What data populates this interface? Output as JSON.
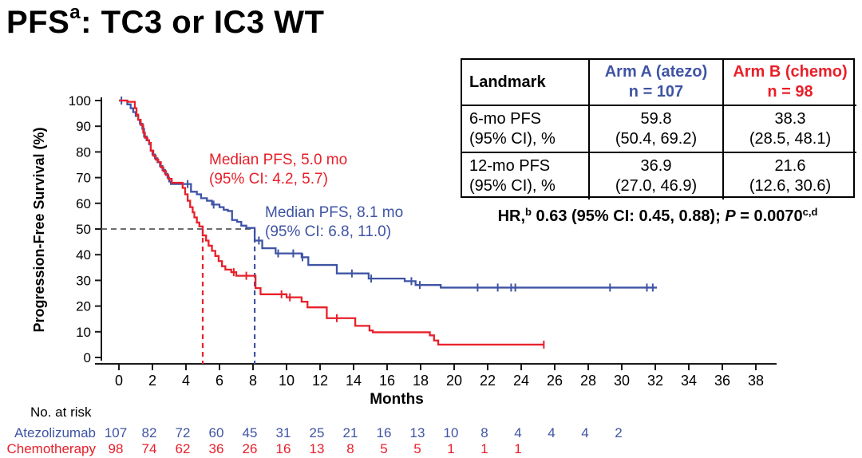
{
  "title": {
    "main": "PFS",
    "sup": "a",
    "rest": ": TC3 or IC3 WT"
  },
  "landmark_table": {
    "header": {
      "col1": "Landmark",
      "arm_a_line1": "Arm A (atezo)",
      "arm_a_line2": "n = 107",
      "arm_b_line1": "Arm B (chemo)",
      "arm_b_line2": "n = 98"
    },
    "rows": [
      {
        "label_line1": "6-mo PFS",
        "label_line2": "(95% CI), %",
        "arm_a_line1": "59.8",
        "arm_a_line2": "(50.4, 69.2)",
        "arm_b_line1": "38.3",
        "arm_b_line2": "(28.5, 48.1)"
      },
      {
        "label_line1": "12-mo PFS",
        "label_line2": "(95% CI), %",
        "arm_a_line1": "36.9",
        "arm_a_line2": "(27.0, 46.9)",
        "arm_b_line1": "21.6",
        "arm_b_line2": "(12.6, 30.6)"
      }
    ]
  },
  "hr_line": {
    "prefix": "HR,",
    "sup1": "b",
    "mid": " 0.63 (95% CI: 0.45, 0.88); ",
    "p_italic": "P",
    "tail": " = 0.0070",
    "sup2": "c,d"
  },
  "colors": {
    "atezo_blue": "#3f54a4",
    "chemo_red": "#e8202a",
    "dash_gray": "#595959",
    "axis_black": "#1a1a1a"
  },
  "chart_data": {
    "type": "km_step",
    "xlabel": "Months",
    "ylabel": "Progression-Free Survival (%)",
    "xlim": [
      0,
      39
    ],
    "ylim": [
      0,
      100
    ],
    "xticks": [
      0,
      2,
      4,
      6,
      8,
      10,
      12,
      14,
      16,
      18,
      20,
      22,
      24,
      26,
      28,
      30,
      32,
      34,
      36,
      38
    ],
    "yticks": [
      0,
      10,
      20,
      30,
      40,
      50,
      60,
      70,
      80,
      90,
      100
    ],
    "reference_line_pct": 50,
    "series": [
      {
        "name": "Atezolizumab",
        "arm": "Arm A (atezo)",
        "n": 107,
        "color": "#3f54a4",
        "median_months": 8.1,
        "annotation": {
          "line1": "Median PFS, 8.1 mo",
          "line2": "(95% CI: 6.8, 11.0)"
        },
        "steps": [
          [
            0,
            100
          ],
          [
            0.5,
            98.5
          ],
          [
            0.7,
            97
          ],
          [
            0.85,
            95.5
          ],
          [
            1,
            94
          ],
          [
            1.15,
            92.5
          ],
          [
            1.25,
            91
          ],
          [
            1.4,
            89
          ],
          [
            1.5,
            86
          ],
          [
            1.65,
            84.5
          ],
          [
            1.8,
            83
          ],
          [
            1.9,
            80.5
          ],
          [
            2,
            79
          ],
          [
            2.15,
            77.5
          ],
          [
            2.3,
            76
          ],
          [
            2.45,
            74.5
          ],
          [
            2.6,
            73
          ],
          [
            2.75,
            71.5
          ],
          [
            2.9,
            70
          ],
          [
            3,
            68.5
          ],
          [
            3.1,
            67.5
          ],
          [
            4.3,
            64.5
          ],
          [
            4.65,
            63.5
          ],
          [
            4.9,
            62
          ],
          [
            5.25,
            61
          ],
          [
            5.55,
            59.5
          ],
          [
            6,
            58.5
          ],
          [
            6.25,
            57.5
          ],
          [
            6.5,
            57
          ],
          [
            6.75,
            53.5
          ],
          [
            7.05,
            52.8
          ],
          [
            7.3,
            51.3
          ],
          [
            7.6,
            50.4
          ],
          [
            8.1,
            45.5
          ],
          [
            8.55,
            42.5
          ],
          [
            9.35,
            40.5
          ],
          [
            10.9,
            39
          ],
          [
            11.3,
            36
          ],
          [
            13,
            32.7
          ],
          [
            14.9,
            30.7
          ],
          [
            17.05,
            29.7
          ],
          [
            17.7,
            28.2
          ],
          [
            19.2,
            27.2
          ],
          [
            32.1,
            27.2
          ]
        ],
        "censors": [
          [
            0.15,
            100
          ],
          [
            4.1,
            67.5
          ],
          [
            5.65,
            59.5
          ],
          [
            8.35,
            45.5
          ],
          [
            9.5,
            40.5
          ],
          [
            10.4,
            40.5
          ],
          [
            10.95,
            39
          ],
          [
            13.9,
            32.7
          ],
          [
            15.05,
            30.7
          ],
          [
            17.45,
            29.7
          ],
          [
            17.95,
            28.2
          ],
          [
            21.4,
            27.2
          ],
          [
            22.6,
            27.2
          ],
          [
            23.4,
            27.2
          ],
          [
            23.65,
            27.2
          ],
          [
            29.3,
            27.2
          ],
          [
            31.5,
            27.2
          ],
          [
            31.85,
            27.2
          ]
        ]
      },
      {
        "name": "Chemotherapy",
        "arm": "Arm B (chemo)",
        "n": 98,
        "color": "#e8202a",
        "median_months": 5.0,
        "annotation": {
          "line1": "Median PFS, 5.0 mo",
          "line2": "(95% CI: 4.2, 5.7)"
        },
        "steps": [
          [
            0,
            100
          ],
          [
            0.5,
            99.5
          ],
          [
            0.95,
            97
          ],
          [
            1.05,
            94.5
          ],
          [
            1.15,
            92.5
          ],
          [
            1.3,
            90.5
          ],
          [
            1.45,
            87.5
          ],
          [
            1.55,
            85.5
          ],
          [
            1.7,
            84.5
          ],
          [
            1.8,
            83.5
          ],
          [
            1.9,
            80.5
          ],
          [
            2.05,
            78.5
          ],
          [
            2.2,
            77
          ],
          [
            2.35,
            76
          ],
          [
            2.5,
            74
          ],
          [
            2.65,
            72.5
          ],
          [
            2.8,
            71
          ],
          [
            2.95,
            69.5
          ],
          [
            3.15,
            68
          ],
          [
            3.8,
            66
          ],
          [
            3.95,
            63.5
          ],
          [
            4.1,
            61
          ],
          [
            4.25,
            58.5
          ],
          [
            4.4,
            56.5
          ],
          [
            4.5,
            54.5
          ],
          [
            4.65,
            52.5
          ],
          [
            4.8,
            51
          ],
          [
            5,
            47.5
          ],
          [
            5.2,
            45.5
          ],
          [
            5.35,
            43.5
          ],
          [
            5.55,
            41.5
          ],
          [
            5.75,
            39.5
          ],
          [
            5.95,
            37.5
          ],
          [
            6.15,
            35.5
          ],
          [
            6.35,
            34.2
          ],
          [
            6.7,
            33.2
          ],
          [
            7,
            31.8
          ],
          [
            8.15,
            27
          ],
          [
            8.45,
            24.6
          ],
          [
            10,
            23.4
          ],
          [
            10.9,
            21.7
          ],
          [
            11.25,
            19.5
          ],
          [
            12.4,
            15.3
          ],
          [
            14.1,
            12.3
          ],
          [
            14.95,
            10.5
          ],
          [
            15.15,
            9.8
          ],
          [
            18.55,
            8.6
          ],
          [
            18.8,
            6.6
          ],
          [
            19.05,
            5
          ],
          [
            25.35,
            5
          ]
        ],
        "censors": [
          [
            6.85,
            33.2
          ],
          [
            7.6,
            31.8
          ],
          [
            9.7,
            24.6
          ],
          [
            10.2,
            23.4
          ],
          [
            13,
            15.3
          ],
          [
            25.35,
            5
          ]
        ]
      }
    ],
    "at_risk": {
      "label": "No. at risk",
      "rows": [
        {
          "name": "Atezolizumab",
          "color": "#3f54a4",
          "months": [
            0,
            2,
            4,
            6,
            8,
            10,
            12,
            14,
            16,
            18,
            20,
            22,
            24,
            26,
            28,
            30
          ],
          "values": [
            107,
            82,
            72,
            60,
            45,
            31,
            25,
            21,
            16,
            13,
            10,
            8,
            4,
            4,
            4,
            2
          ]
        },
        {
          "name": "Chemotherapy",
          "color": "#e8202a",
          "months": [
            0,
            2,
            4,
            6,
            8,
            10,
            12,
            14,
            16,
            18,
            20,
            22,
            24
          ],
          "values": [
            98,
            74,
            62,
            36,
            26,
            16,
            13,
            8,
            5,
            5,
            1,
            1,
            1
          ]
        }
      ]
    }
  }
}
